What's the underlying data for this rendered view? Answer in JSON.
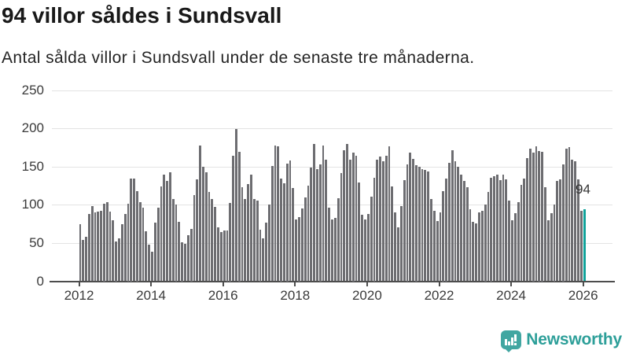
{
  "header": {
    "title": "94 villor såldes i Sundsvall",
    "subtitle": "Antal sålda villor i Sundsvall under de senaste tre månaderna."
  },
  "chart_data": {
    "type": "bar",
    "title": "94 villor såldes i Sundsvall",
    "subtitle": "Antal sålda villor i Sundsvall under de senaste tre månaderna.",
    "frequency": "monthly",
    "x_start": "2012-01",
    "x_end": "2026-01",
    "values": [
      75,
      54,
      58,
      88,
      98,
      90,
      91,
      92,
      102,
      104,
      91,
      80,
      52,
      56,
      75,
      88,
      102,
      135,
      134,
      118,
      104,
      96,
      65,
      48,
      39,
      77,
      96,
      124,
      140,
      131,
      143,
      108,
      101,
      78,
      51,
      49,
      60,
      69,
      113,
      133,
      178,
      150,
      143,
      117,
      108,
      97,
      71,
      64,
      66,
      67,
      103,
      164,
      199,
      170,
      123,
      108,
      127,
      140,
      108,
      106,
      68,
      56,
      77,
      100,
      151,
      178,
      177,
      135,
      128,
      154,
      158,
      122,
      81,
      84,
      95,
      110,
      125,
      149,
      180,
      147,
      153,
      178,
      159,
      96,
      81,
      83,
      109,
      142,
      172,
      180,
      159,
      169,
      164,
      129,
      87,
      81,
      88,
      111,
      136,
      159,
      163,
      157,
      164,
      177,
      124,
      90,
      71,
      98,
      132,
      153,
      168,
      160,
      152,
      150,
      147,
      146,
      144,
      108,
      92,
      79,
      90,
      118,
      135,
      155,
      172,
      157,
      150,
      140,
      131,
      123,
      94,
      78,
      76,
      90,
      92,
      101,
      117,
      136,
      138,
      140,
      132,
      140,
      133,
      106,
      80,
      89,
      104,
      126,
      134,
      161,
      174,
      169,
      177,
      171,
      170,
      123,
      80,
      89,
      101,
      131,
      133,
      153,
      174,
      176,
      159,
      157,
      133,
      92,
      94
    ],
    "highlight_last_value": 94,
    "annotation_label": "94",
    "ylim": [
      0,
      250
    ],
    "y_ticks": [
      0,
      50,
      100,
      150,
      200,
      250
    ],
    "x_tick_years": [
      2012,
      2014,
      2016,
      2018,
      2020,
      2022,
      2024,
      2026
    ],
    "grid": "horizontal",
    "legend": "none",
    "bar_color": "#6d6d71",
    "highlight_color": "#10a29a",
    "gridline_color": "#e3e3e3",
    "axis_color": "#4d4d4d"
  },
  "footer": {
    "logo_text": "Newsworthy",
    "logo_icon": "bar-chart-exclamation-bubble-icon",
    "logo_icon_color": "#41a6a1",
    "logo_text_color": "#2d9f99"
  }
}
